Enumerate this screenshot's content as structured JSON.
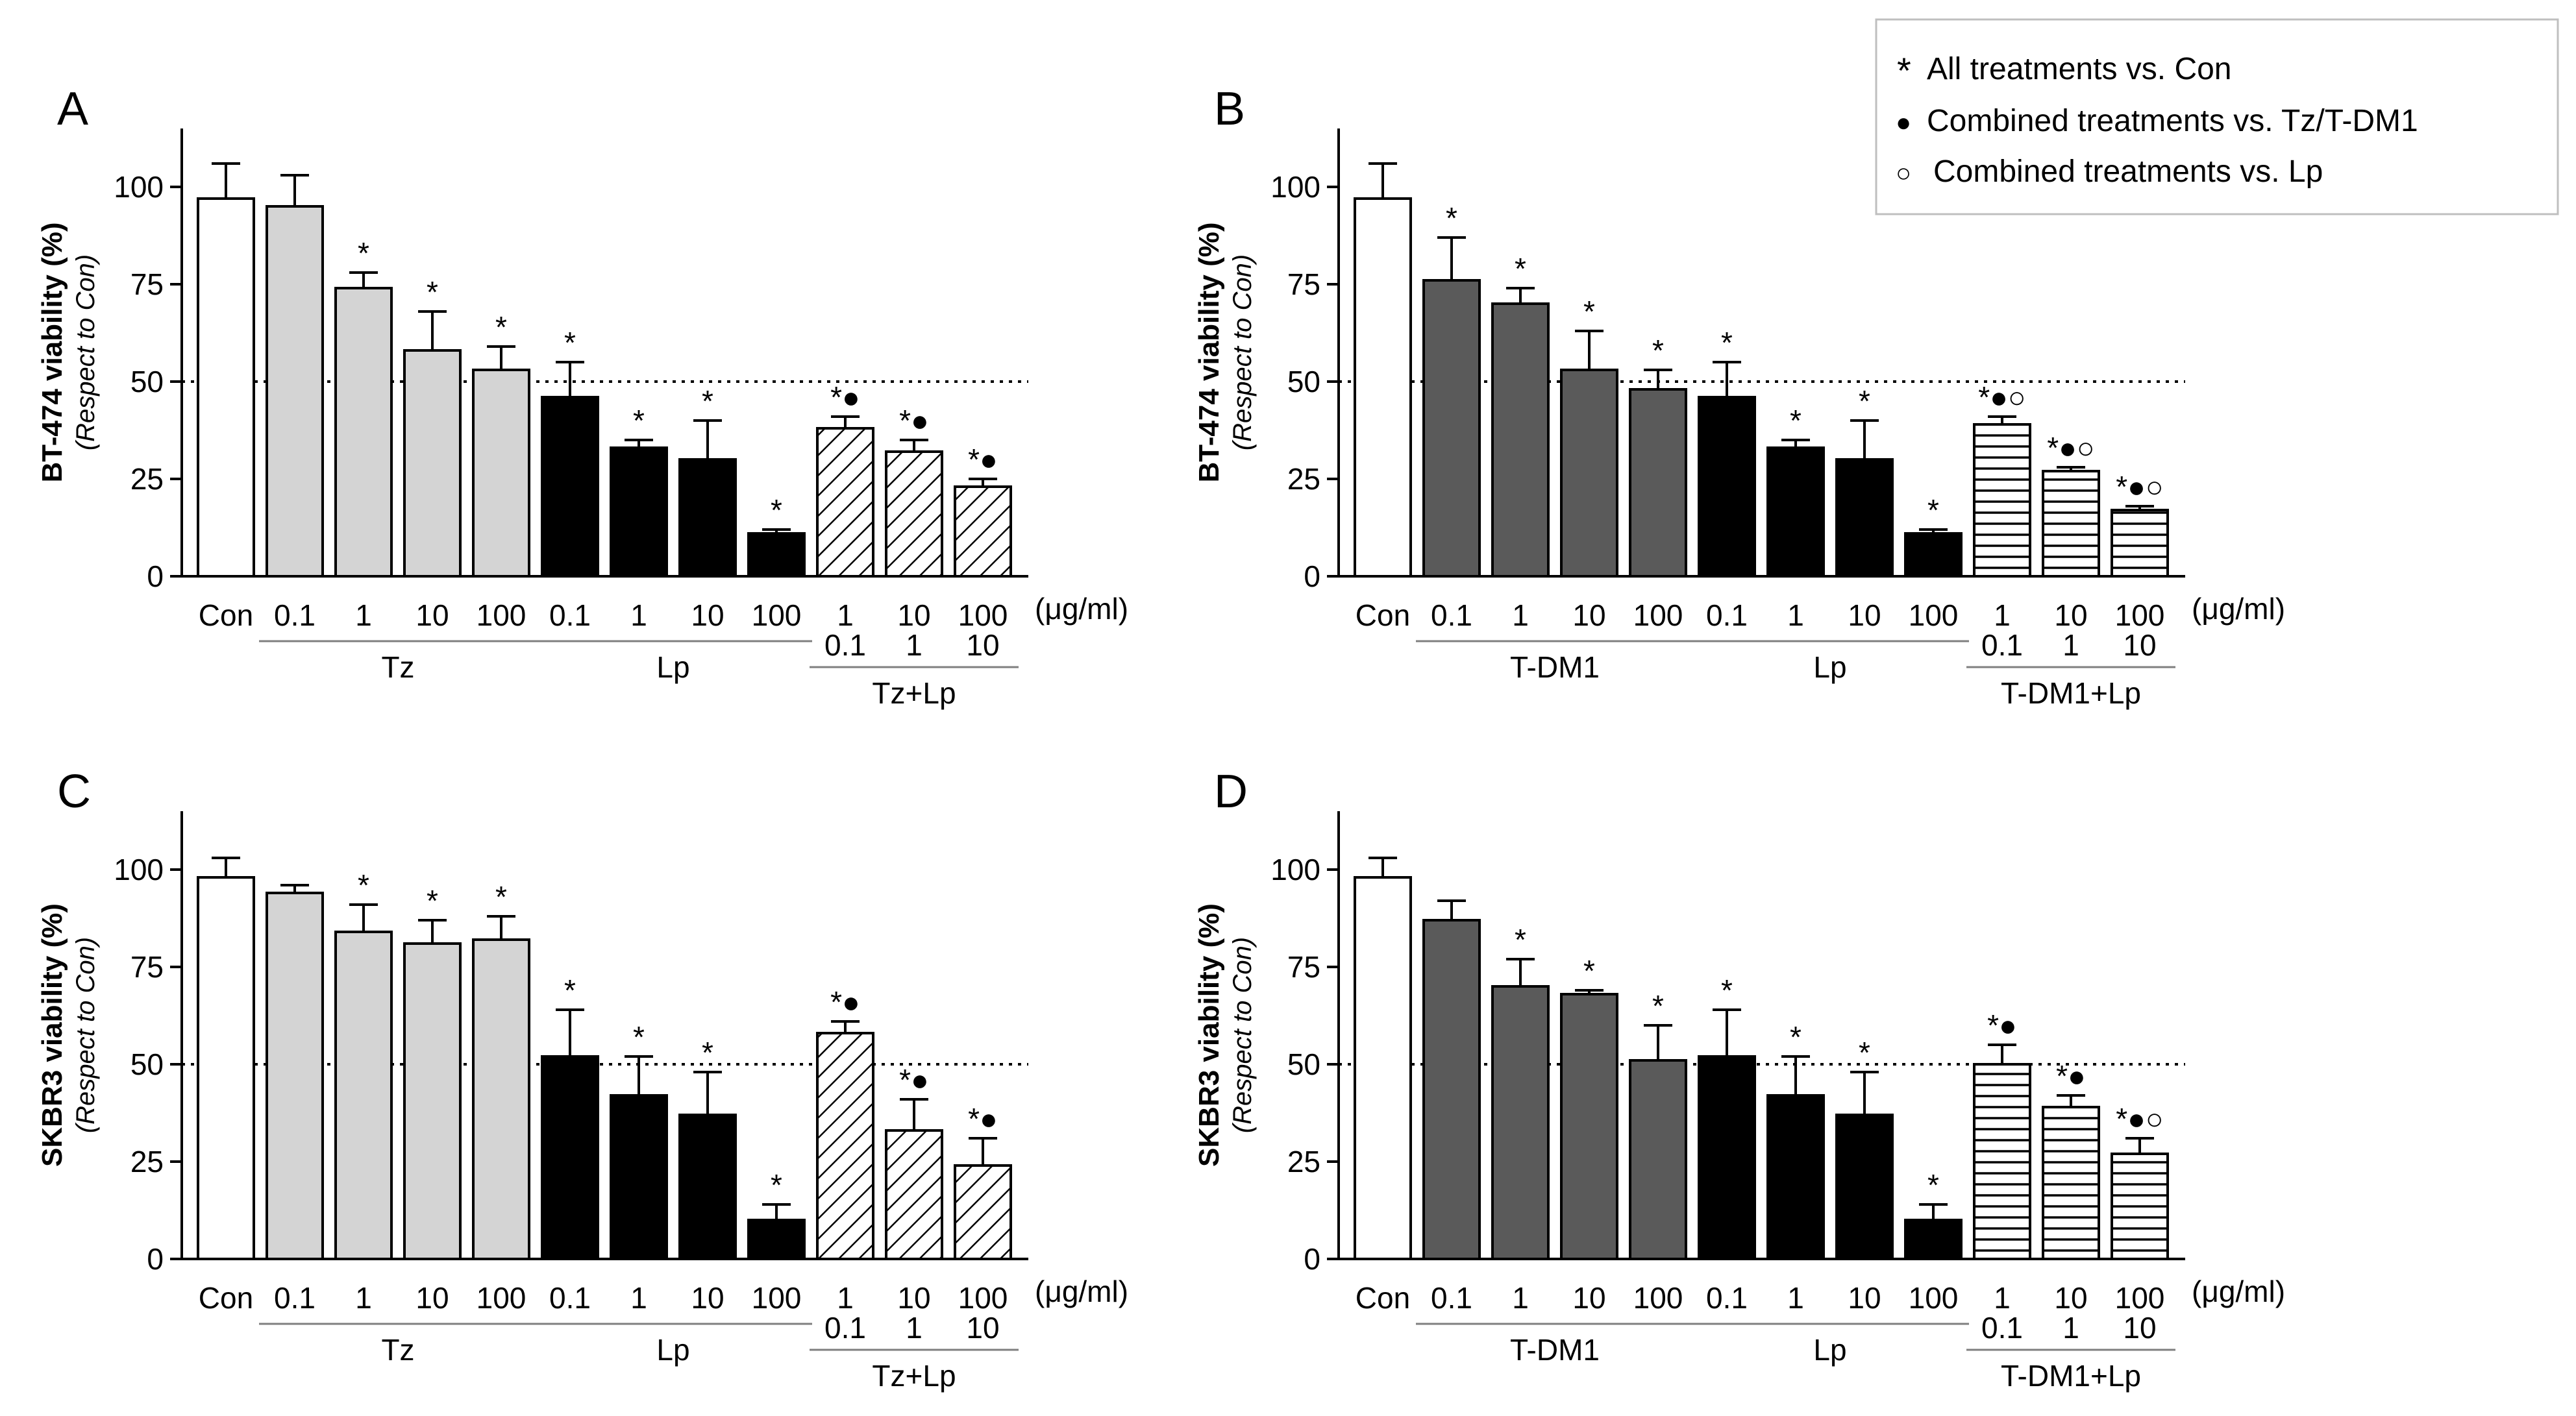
{
  "legend": {
    "items": [
      {
        "symbol": "*",
        "label": "All treatments vs. Con"
      },
      {
        "symbol": "●",
        "label": "Combined treatments vs. Tz/T-DM1"
      },
      {
        "symbol": "○",
        "label": "Combined treatments vs. Lp"
      }
    ]
  },
  "colors": {
    "con": "#ffffff",
    "tz": "#d4d4d4",
    "tdm1": "#5a5a5a",
    "lp": "#000000",
    "combo": "#ffffff",
    "axis": "#000000"
  },
  "chart_data": [
    {
      "panel": "A",
      "type": "bar",
      "ylabel": "BT-474 viability (%)",
      "ylabel_sub": "(Respect to Con)",
      "ylim": [
        0,
        115
      ],
      "yticks": [
        "0",
        "25",
        "50",
        "75",
        "100"
      ],
      "reference_line": 50,
      "unit": "(μg/ml)",
      "groups": [
        {
          "label": "",
          "start": 0,
          "end": 0
        },
        {
          "label": "Tz",
          "start": 1,
          "end": 4
        },
        {
          "label": "Lp",
          "start": 5,
          "end": 8
        },
        {
          "label": "Tz+Lp",
          "start": 9,
          "end": 11
        }
      ],
      "bars": [
        {
          "label": "Con",
          "sub": "",
          "value": 97,
          "error": 9,
          "sig": "",
          "style": "con"
        },
        {
          "label": "0.1",
          "sub": "",
          "value": 95,
          "error": 8,
          "sig": "",
          "style": "tz"
        },
        {
          "label": "1",
          "sub": "",
          "value": 74,
          "error": 4,
          "sig": "*",
          "style": "tz"
        },
        {
          "label": "10",
          "sub": "",
          "value": 58,
          "error": 10,
          "sig": "*",
          "style": "tz"
        },
        {
          "label": "100",
          "sub": "",
          "value": 53,
          "error": 6,
          "sig": "*",
          "style": "tz"
        },
        {
          "label": "0.1",
          "sub": "",
          "value": 46,
          "error": 9,
          "sig": "*",
          "style": "lp"
        },
        {
          "label": "1",
          "sub": "",
          "value": 33,
          "error": 2,
          "sig": "*",
          "style": "lp"
        },
        {
          "label": "10",
          "sub": "",
          "value": 30,
          "error": 10,
          "sig": "*",
          "style": "lp"
        },
        {
          "label": "100",
          "sub": "",
          "value": 11,
          "error": 1,
          "sig": "*",
          "style": "lp"
        },
        {
          "label": "1",
          "sub": "0.1",
          "value": 38,
          "error": 3,
          "sig": "*●",
          "style": "diag"
        },
        {
          "label": "10",
          "sub": "1",
          "value": 32,
          "error": 3,
          "sig": "*●",
          "style": "diag"
        },
        {
          "label": "100",
          "sub": "10",
          "value": 23,
          "error": 2,
          "sig": "*●",
          "style": "diag"
        }
      ]
    },
    {
      "panel": "B",
      "type": "bar",
      "ylabel": "BT-474 viability (%)",
      "ylabel_sub": "(Respect to Con)",
      "ylim": [
        0,
        115
      ],
      "yticks": [
        "0",
        "25",
        "50",
        "75",
        "100"
      ],
      "reference_line": 50,
      "unit": "(μg/ml)",
      "groups": [
        {
          "label": "",
          "start": 0,
          "end": 0
        },
        {
          "label": "T-DM1",
          "start": 1,
          "end": 4
        },
        {
          "label": "Lp",
          "start": 5,
          "end": 8
        },
        {
          "label": "T-DM1+Lp",
          "start": 9,
          "end": 11
        }
      ],
      "bars": [
        {
          "label": "Con",
          "sub": "",
          "value": 97,
          "error": 9,
          "sig": "",
          "style": "con"
        },
        {
          "label": "0.1",
          "sub": "",
          "value": 76,
          "error": 11,
          "sig": "*",
          "style": "tdm1"
        },
        {
          "label": "1",
          "sub": "",
          "value": 70,
          "error": 4,
          "sig": "*",
          "style": "tdm1"
        },
        {
          "label": "10",
          "sub": "",
          "value": 53,
          "error": 10,
          "sig": "*",
          "style": "tdm1"
        },
        {
          "label": "100",
          "sub": "",
          "value": 48,
          "error": 5,
          "sig": "*",
          "style": "tdm1"
        },
        {
          "label": "0.1",
          "sub": "",
          "value": 46,
          "error": 9,
          "sig": "*",
          "style": "lp"
        },
        {
          "label": "1",
          "sub": "",
          "value": 33,
          "error": 2,
          "sig": "*",
          "style": "lp"
        },
        {
          "label": "10",
          "sub": "",
          "value": 30,
          "error": 10,
          "sig": "*",
          "style": "lp"
        },
        {
          "label": "100",
          "sub": "",
          "value": 11,
          "error": 1,
          "sig": "*",
          "style": "lp"
        },
        {
          "label": "1",
          "sub": "0.1",
          "value": 39,
          "error": 2,
          "sig": "*●○",
          "style": "horiz"
        },
        {
          "label": "10",
          "sub": "1",
          "value": 27,
          "error": 1,
          "sig": "*●○",
          "style": "horiz"
        },
        {
          "label": "100",
          "sub": "10",
          "value": 17,
          "error": 1,
          "sig": "*●○",
          "style": "horiz"
        }
      ]
    },
    {
      "panel": "C",
      "type": "bar",
      "ylabel": "SKBR3 viability (%)",
      "ylabel_sub": "(Respect to Con)",
      "ylim": [
        0,
        115
      ],
      "yticks": [
        "0",
        "25",
        "50",
        "75",
        "100"
      ],
      "reference_line": 50,
      "unit": "(μg/ml)",
      "groups": [
        {
          "label": "",
          "start": 0,
          "end": 0
        },
        {
          "label": "Tz",
          "start": 1,
          "end": 4
        },
        {
          "label": "Lp",
          "start": 5,
          "end": 8
        },
        {
          "label": "Tz+Lp",
          "start": 9,
          "end": 11
        }
      ],
      "bars": [
        {
          "label": "Con",
          "sub": "",
          "value": 98,
          "error": 5,
          "sig": "",
          "style": "con"
        },
        {
          "label": "0.1",
          "sub": "",
          "value": 94,
          "error": 2,
          "sig": "",
          "style": "tz"
        },
        {
          "label": "1",
          "sub": "",
          "value": 84,
          "error": 7,
          "sig": "*",
          "style": "tz"
        },
        {
          "label": "10",
          "sub": "",
          "value": 81,
          "error": 6,
          "sig": "*",
          "style": "tz"
        },
        {
          "label": "100",
          "sub": "",
          "value": 82,
          "error": 6,
          "sig": "*",
          "style": "tz"
        },
        {
          "label": "0.1",
          "sub": "",
          "value": 52,
          "error": 12,
          "sig": "*",
          "style": "lp"
        },
        {
          "label": "1",
          "sub": "",
          "value": 42,
          "error": 10,
          "sig": "*",
          "style": "lp"
        },
        {
          "label": "10",
          "sub": "",
          "value": 37,
          "error": 11,
          "sig": "*",
          "style": "lp"
        },
        {
          "label": "100",
          "sub": "",
          "value": 10,
          "error": 4,
          "sig": "*",
          "style": "lp"
        },
        {
          "label": "1",
          "sub": "0.1",
          "value": 58,
          "error": 3,
          "sig": "*●",
          "style": "diag"
        },
        {
          "label": "10",
          "sub": "1",
          "value": 33,
          "error": 8,
          "sig": "*●",
          "style": "diag"
        },
        {
          "label": "100",
          "sub": "10",
          "value": 24,
          "error": 7,
          "sig": "*●",
          "style": "diag"
        }
      ]
    },
    {
      "panel": "D",
      "type": "bar",
      "ylabel": "SKBR3 viability (%)",
      "ylabel_sub": "(Respect to Con)",
      "ylim": [
        0,
        115
      ],
      "yticks": [
        "0",
        "25",
        "50",
        "75",
        "100"
      ],
      "reference_line": 50,
      "unit": "(μg/ml)",
      "groups": [
        {
          "label": "",
          "start": 0,
          "end": 0
        },
        {
          "label": "T-DM1",
          "start": 1,
          "end": 4
        },
        {
          "label": "Lp",
          "start": 5,
          "end": 8
        },
        {
          "label": "T-DM1+Lp",
          "start": 9,
          "end": 11
        }
      ],
      "bars": [
        {
          "label": "Con",
          "sub": "",
          "value": 98,
          "error": 5,
          "sig": "",
          "style": "con"
        },
        {
          "label": "0.1",
          "sub": "",
          "value": 87,
          "error": 5,
          "sig": "",
          "style": "tdm1"
        },
        {
          "label": "1",
          "sub": "",
          "value": 70,
          "error": 7,
          "sig": "*",
          "style": "tdm1"
        },
        {
          "label": "10",
          "sub": "",
          "value": 68,
          "error": 1,
          "sig": "*",
          "style": "tdm1"
        },
        {
          "label": "100",
          "sub": "",
          "value": 51,
          "error": 9,
          "sig": "*",
          "style": "tdm1"
        },
        {
          "label": "0.1",
          "sub": "",
          "value": 52,
          "error": 12,
          "sig": "*",
          "style": "lp"
        },
        {
          "label": "1",
          "sub": "",
          "value": 42,
          "error": 10,
          "sig": "*",
          "style": "lp"
        },
        {
          "label": "10",
          "sub": "",
          "value": 37,
          "error": 11,
          "sig": "*",
          "style": "lp"
        },
        {
          "label": "100",
          "sub": "",
          "value": 10,
          "error": 4,
          "sig": "*",
          "style": "lp"
        },
        {
          "label": "1",
          "sub": "0.1",
          "value": 50,
          "error": 5,
          "sig": "*●",
          "style": "horiz"
        },
        {
          "label": "10",
          "sub": "1",
          "value": 39,
          "error": 3,
          "sig": "*●",
          "style": "horiz"
        },
        {
          "label": "100",
          "sub": "10",
          "value": 27,
          "error": 4,
          "sig": "*●○",
          "style": "horiz"
        }
      ]
    }
  ]
}
